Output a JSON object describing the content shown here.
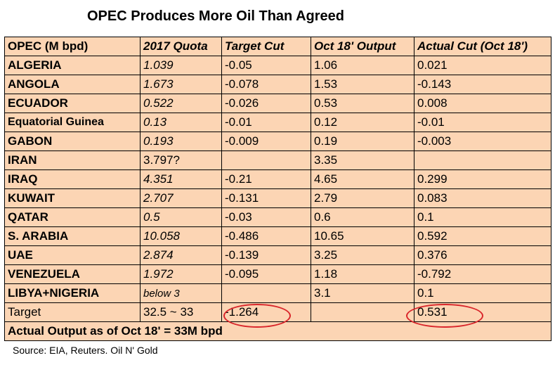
{
  "title": "OPEC Produces More Oil Than Agreed",
  "headers": [
    "OPEC  (M bpd)",
    "2017 Quota",
    "Target Cut",
    "Oct 18' Output",
    "Actual Cut (Oct 18')"
  ],
  "rows": [
    [
      "ALGERIA",
      "1.039",
      "-0.05",
      "1.06",
      "0.021"
    ],
    [
      "ANGOLA",
      "1.673",
      "-0.078",
      "1.53",
      "-0.143"
    ],
    [
      "ECUADOR",
      "0.522",
      "-0.026",
      "0.53",
      "0.008"
    ],
    [
      "Equatorial Guinea",
      "0.13",
      "-0.01",
      "0.12",
      "-0.01"
    ],
    [
      "GABON",
      "0.193",
      "-0.009",
      "0.19",
      "-0.003"
    ],
    [
      "IRAN",
      "3.797?",
      "",
      "3.35",
      ""
    ],
    [
      "IRAQ",
      "4.351",
      "-0.21",
      "4.65",
      "0.299"
    ],
    [
      "KUWAIT",
      "2.707",
      "-0.131",
      "2.79",
      "0.083"
    ],
    [
      "QATAR",
      "0.5",
      "-0.03",
      "0.6",
      "0.1"
    ],
    [
      "S. ARABIA",
      "10.058",
      "-0.486",
      "10.65",
      "0.592"
    ],
    [
      "UAE",
      "2.874",
      "-0.139",
      "3.25",
      "0.376"
    ],
    [
      "VENEZUELA",
      "1.972",
      "-0.095",
      "1.18",
      "-0.792"
    ],
    [
      "LIBYA+NIGERIA",
      "below 3",
      "",
      "3.1",
      "0.1"
    ]
  ],
  "target_row": [
    "Target",
    "32.5 ~ 33",
    "-1.264",
    "",
    "0.531"
  ],
  "footer": "Actual Output as of Oct 18' = 33M bpd",
  "source": "Source: EIA, Reuters. Oil N' Gold",
  "colors": {
    "cell_bg": "#fcd5b4",
    "highlight_ellipse": "#d9262b",
    "border": "#000000"
  }
}
